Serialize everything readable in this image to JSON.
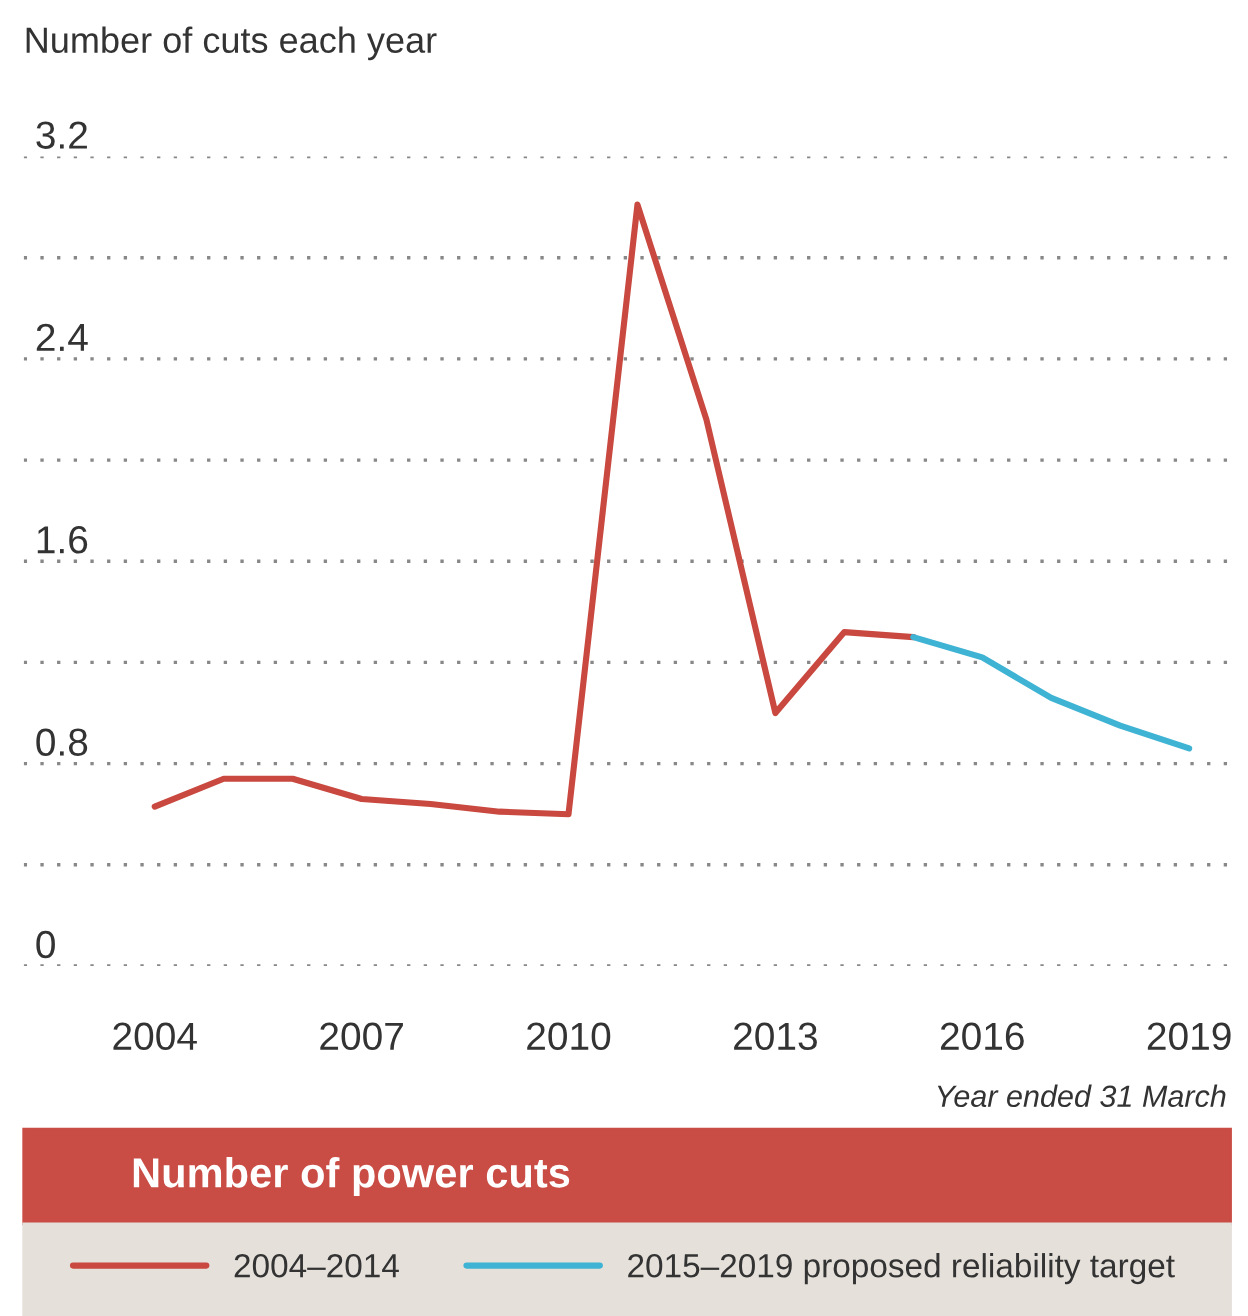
{
  "chart_data": {
    "type": "line",
    "title": "Number of power cuts",
    "ylabel": "Number of cuts each year",
    "annotations": [
      "Year ended 31 March"
    ],
    "series": [
      {
        "name": "2004–2014",
        "color": "#c9483f",
        "x": [
          2004,
          2005,
          2006,
          2007,
          2008,
          2009,
          2010,
          2011,
          2012,
          2013,
          2014,
          2015
        ],
        "values": [
          0.63,
          0.74,
          0.74,
          0.66,
          0.64,
          0.61,
          0.6,
          3.01,
          2.16,
          1.0,
          1.32,
          1.3
        ]
      },
      {
        "name": "2015–2019 proposed reliability target",
        "color": "#3fb3d3",
        "x": [
          2015,
          2016,
          2017,
          2018,
          2019
        ],
        "values": [
          1.3,
          1.22,
          1.06,
          0.95,
          0.86
        ]
      }
    ],
    "xlim": [
      2002.1,
      2019.6
    ],
    "xticks": [
      2004,
      2007,
      2010,
      2013,
      2016,
      2019
    ],
    "ylim": [
      0,
      3.2
    ],
    "yticks": [
      0,
      {
        "value": 0.4,
        "label": null
      },
      0.8,
      {
        "value": 1.2,
        "label": null
      },
      1.6,
      {
        "value": 2.0,
        "label": null
      },
      2.4,
      {
        "value": 2.8,
        "label": null
      },
      3.2
    ],
    "grid": "y",
    "legend": "bottom",
    "marker": "none",
    "line_style": "solid"
  }
}
